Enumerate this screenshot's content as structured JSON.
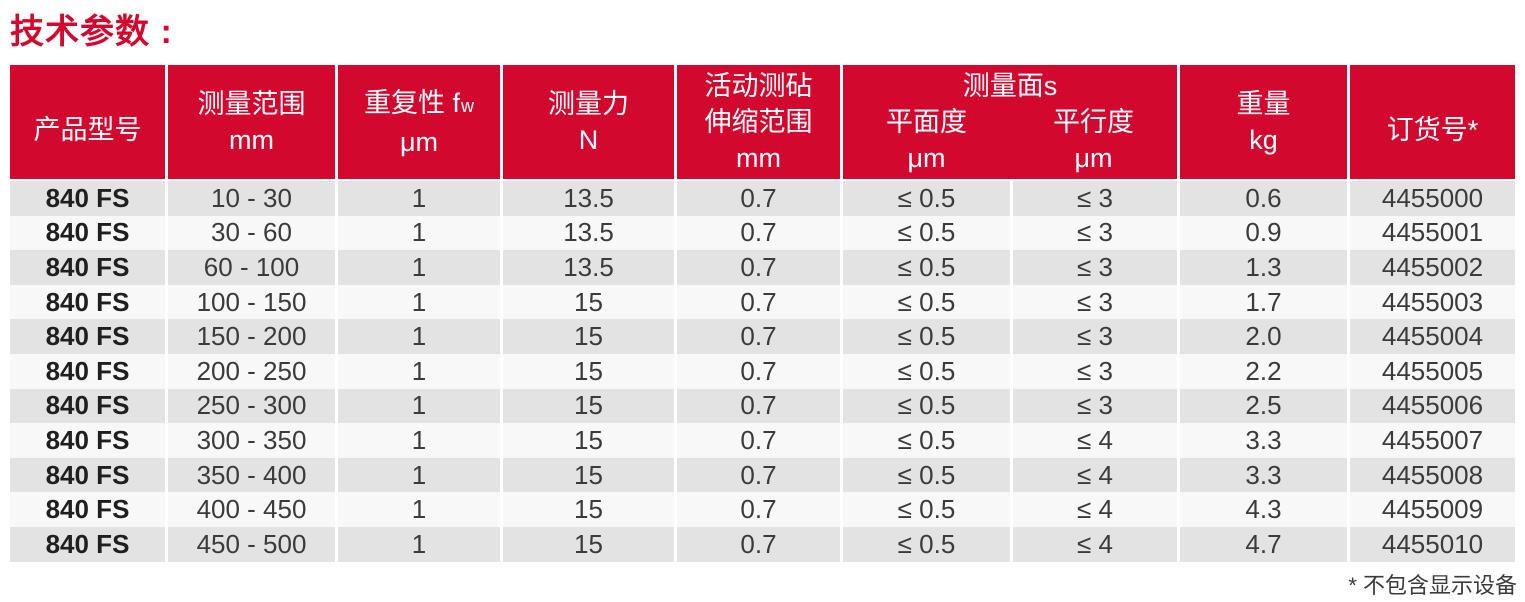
{
  "title": "技术参数 :",
  "footnote": "* 不包含显示设备",
  "colors": {
    "brand_red": "#d2082e",
    "row_gray": "#e4e3e3",
    "row_light": "#f8f8f8",
    "header_text": "#ffffff",
    "body_text": "#3b3b3b"
  },
  "table": {
    "headers": {
      "product_model": "产品型号",
      "range_line1": "测量范围",
      "range_line2": "mm",
      "repeatability_prefix": "重复性 f",
      "repeatability_sub": "w",
      "repeatability_unit": "μm",
      "force_line1": "测量力",
      "force_line2": "N",
      "anvil_line1": "活动测砧",
      "anvil_line2": "伸缩范围",
      "anvil_line3": "mm",
      "faces_group": "测量面s",
      "faces_flatness": "平面度",
      "faces_parallelism": "平行度",
      "faces_unit": "μm",
      "weight_line1": "重量",
      "weight_line2": "kg",
      "order_number": "订货号*"
    },
    "rows": [
      {
        "model": "840 FS",
        "range": "10 - 30",
        "repeatability": "1",
        "force": "13.5",
        "anvil": "0.7",
        "flatness": "≤ 0.5",
        "parallelism": "≤ 3",
        "weight": "0.6",
        "order": "4455000"
      },
      {
        "model": "840 FS",
        "range": "30 - 60",
        "repeatability": "1",
        "force": "13.5",
        "anvil": "0.7",
        "flatness": "≤ 0.5",
        "parallelism": "≤ 3",
        "weight": "0.9",
        "order": "4455001"
      },
      {
        "model": "840 FS",
        "range": "60 - 100",
        "repeatability": "1",
        "force": "13.5",
        "anvil": "0.7",
        "flatness": "≤ 0.5",
        "parallelism": "≤ 3",
        "weight": "1.3",
        "order": "4455002"
      },
      {
        "model": "840 FS",
        "range": "100 - 150",
        "repeatability": "1",
        "force": "15",
        "anvil": "0.7",
        "flatness": "≤ 0.5",
        "parallelism": "≤ 3",
        "weight": "1.7",
        "order": "4455003"
      },
      {
        "model": "840 FS",
        "range": "150 - 200",
        "repeatability": "1",
        "force": "15",
        "anvil": "0.7",
        "flatness": "≤ 0.5",
        "parallelism": "≤ 3",
        "weight": "2.0",
        "order": "4455004"
      },
      {
        "model": "840 FS",
        "range": "200 - 250",
        "repeatability": "1",
        "force": "15",
        "anvil": "0.7",
        "flatness": "≤ 0.5",
        "parallelism": "≤ 3",
        "weight": "2.2",
        "order": "4455005"
      },
      {
        "model": "840 FS",
        "range": "250 - 300",
        "repeatability": "1",
        "force": "15",
        "anvil": "0.7",
        "flatness": "≤ 0.5",
        "parallelism": "≤ 3",
        "weight": "2.5",
        "order": "4455006"
      },
      {
        "model": "840 FS",
        "range": "300 - 350",
        "repeatability": "1",
        "force": "15",
        "anvil": "0.7",
        "flatness": "≤ 0.5",
        "parallelism": "≤ 4",
        "weight": "3.3",
        "order": "4455007"
      },
      {
        "model": "840 FS",
        "range": "350 - 400",
        "repeatability": "1",
        "force": "15",
        "anvil": "0.7",
        "flatness": "≤ 0.5",
        "parallelism": "≤ 4",
        "weight": "3.3",
        "order": "4455008"
      },
      {
        "model": "840 FS",
        "range": "400 - 450",
        "repeatability": "1",
        "force": "15",
        "anvil": "0.7",
        "flatness": "≤ 0.5",
        "parallelism": "≤ 4",
        "weight": "4.3",
        "order": "4455009"
      },
      {
        "model": "840 FS",
        "range": "450 - 500",
        "repeatability": "1",
        "force": "15",
        "anvil": "0.7",
        "flatness": "≤ 0.5",
        "parallelism": "≤ 4",
        "weight": "4.7",
        "order": "4455010"
      }
    ]
  }
}
